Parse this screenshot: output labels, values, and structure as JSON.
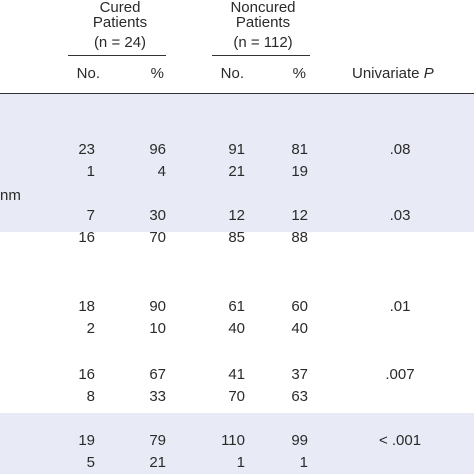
{
  "header": {
    "cured_group": {
      "line1": "Cured",
      "line2": "Patients",
      "line3": "(n = 24)"
    },
    "noncured_group": {
      "line1": "Noncured",
      "line2": "Patients",
      "line3": "(n = 112)"
    },
    "col_no": "No.",
    "col_pct": "%",
    "univariate_label": "Univariate",
    "univariate_p": "P"
  },
  "row_fragment_label": "nm",
  "rows": [
    {
      "cured_no": "23",
      "cured_pct": "96",
      "noncured_no": "91",
      "noncured_pct": "81",
      "p": ".08"
    },
    {
      "cured_no": "1",
      "cured_pct": "4",
      "noncured_no": "21",
      "noncured_pct": "19",
      "p": ""
    },
    {
      "cured_no": "7",
      "cured_pct": "30",
      "noncured_no": "12",
      "noncured_pct": "12",
      "p": ".03"
    },
    {
      "cured_no": "16",
      "cured_pct": "70",
      "noncured_no": "85",
      "noncured_pct": "88",
      "p": ""
    },
    {
      "cured_no": "18",
      "cured_pct": "90",
      "noncured_no": "61",
      "noncured_pct": "60",
      "p": ".01"
    },
    {
      "cured_no": "2",
      "cured_pct": "10",
      "noncured_no": "40",
      "noncured_pct": "40",
      "p": ""
    },
    {
      "cured_no": "16",
      "cured_pct": "67",
      "noncured_no": "41",
      "noncured_pct": "37",
      "p": ".007"
    },
    {
      "cured_no": "8",
      "cured_pct": "33",
      "noncured_no": "70",
      "noncured_pct": "63",
      "p": ""
    },
    {
      "cured_no": "19",
      "cured_pct": "79",
      "noncured_no": "110",
      "noncured_pct": "99",
      "p": "< .001"
    },
    {
      "cured_no": "5",
      "cured_pct": "21",
      "noncured_no": "1",
      "noncured_pct": "1",
      "p": ""
    }
  ],
  "colors": {
    "band": "#e8ebf5",
    "text": "#2a2a2a",
    "rule": "#333333"
  }
}
